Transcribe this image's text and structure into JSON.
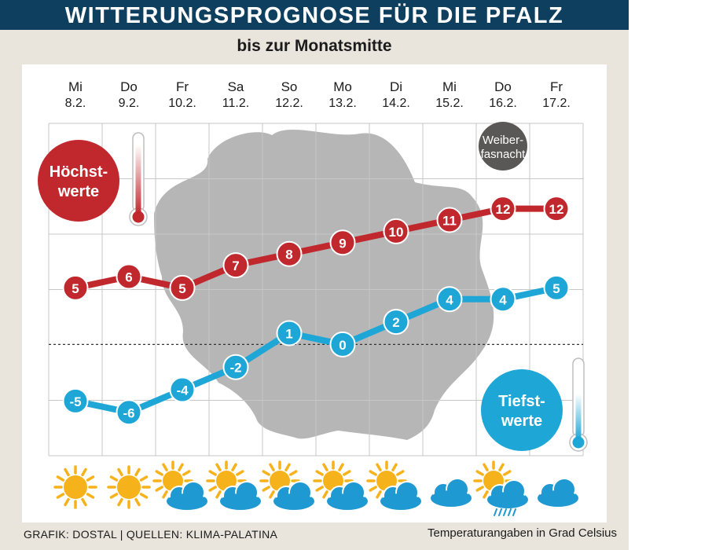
{
  "header": {
    "title": "WITTERUNGSPROGNOSE FÜR DIE PFALZ",
    "subtitle": "bis zur Monatsmitte"
  },
  "footer": {
    "credit": "GRAFIK: DOSTAL | QUELLEN: KLIMA-PALATINA",
    "note": "Temperaturangaben in Grad Celsius"
  },
  "chart_data": {
    "type": "line",
    "days": [
      {
        "weekday": "Mi",
        "date": "8.2."
      },
      {
        "weekday": "Do",
        "date": "9.2."
      },
      {
        "weekday": "Fr",
        "date": "10.2."
      },
      {
        "weekday": "Sa",
        "date": "11.2."
      },
      {
        "weekday": "So",
        "date": "12.2."
      },
      {
        "weekday": "Mo",
        "date": "13.2."
      },
      {
        "weekday": "Di",
        "date": "14.2."
      },
      {
        "weekday": "Mi",
        "date": "15.2."
      },
      {
        "weekday": "Do",
        "date": "16.2."
      },
      {
        "weekday": "Fr",
        "date": "17.2."
      }
    ],
    "series": [
      {
        "name": "Höchstwerte",
        "label_lines": [
          "Höchst-",
          "werte"
        ],
        "color": "#c0282d",
        "values": [
          5,
          6,
          5,
          7,
          8,
          9,
          10,
          11,
          12,
          12
        ]
      },
      {
        "name": "Tiefstwerte",
        "label_lines": [
          "Tiefst-",
          "werte"
        ],
        "color": "#1ea7d6",
        "values": [
          -5,
          -6,
          -4,
          -2,
          1,
          0,
          2,
          4,
          4,
          5
        ]
      }
    ],
    "ylim": [
      -8,
      15
    ],
    "zero_line": "dashed",
    "grid": true,
    "annotation": {
      "day_index": 8,
      "lines": [
        "Weiber-",
        "fasnacht"
      ],
      "color": "#5a5757"
    },
    "weather_icons": [
      "sun",
      "sun",
      "sun-cloud",
      "sun-cloud",
      "sun-cloud",
      "sun-cloud",
      "sun-cloud",
      "cloud",
      "sun-cloud-rain",
      "cloud"
    ],
    "colors": {
      "sun": "#f6b21a",
      "cloud": "#1e99d2",
      "rain": "#1e99d2",
      "grid": "#c7c7c7",
      "map": "#a9a9a9"
    }
  }
}
